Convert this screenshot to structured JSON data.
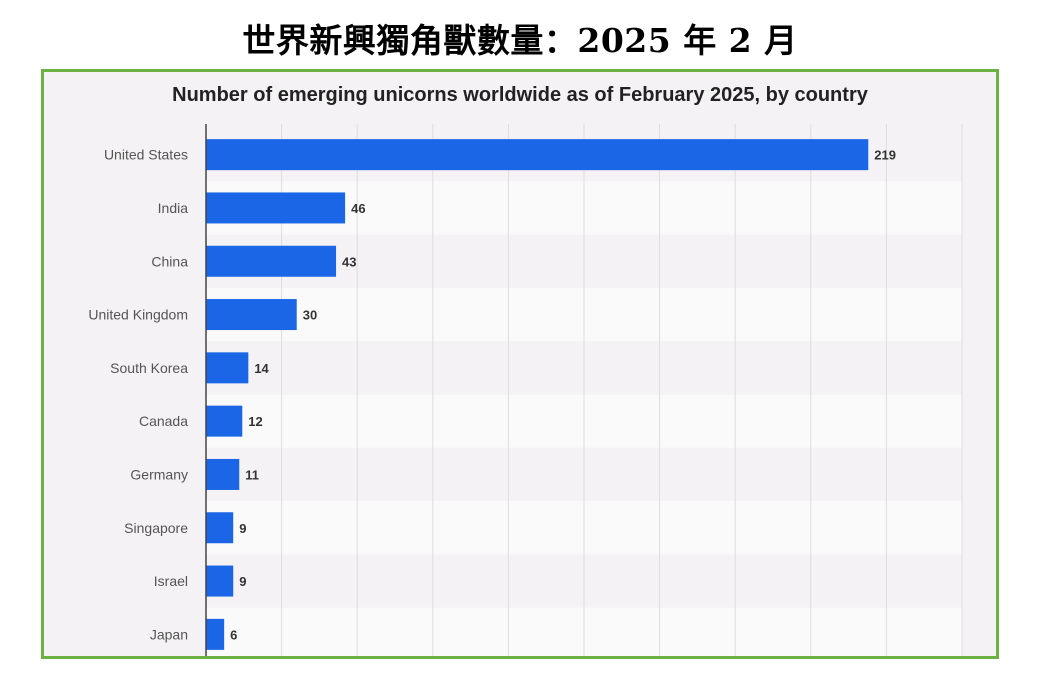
{
  "page": {
    "heading": "世界新興獨角獸數量：2025 年 2 月"
  },
  "colors": {
    "frame_border": "#6db044",
    "chart_background": "#f4f2f4",
    "band_light": "#fafafa",
    "bar": "#1a66e6",
    "gridline": "#dddddd",
    "axis": "#444444"
  },
  "chart_data": {
    "type": "bar",
    "orientation": "horizontal",
    "title": "Number of emerging unicorns worldwide as of February 2025, by country",
    "categories": [
      "United States",
      "India",
      "China",
      "United Kingdom",
      "South Korea",
      "Canada",
      "Germany",
      "Singapore",
      "Israel",
      "Japan"
    ],
    "values": [
      219,
      46,
      43,
      30,
      14,
      12,
      11,
      9,
      9,
      6
    ],
    "xlim": [
      0,
      250
    ],
    "grid": true,
    "data_labels": true,
    "legend": "none"
  }
}
